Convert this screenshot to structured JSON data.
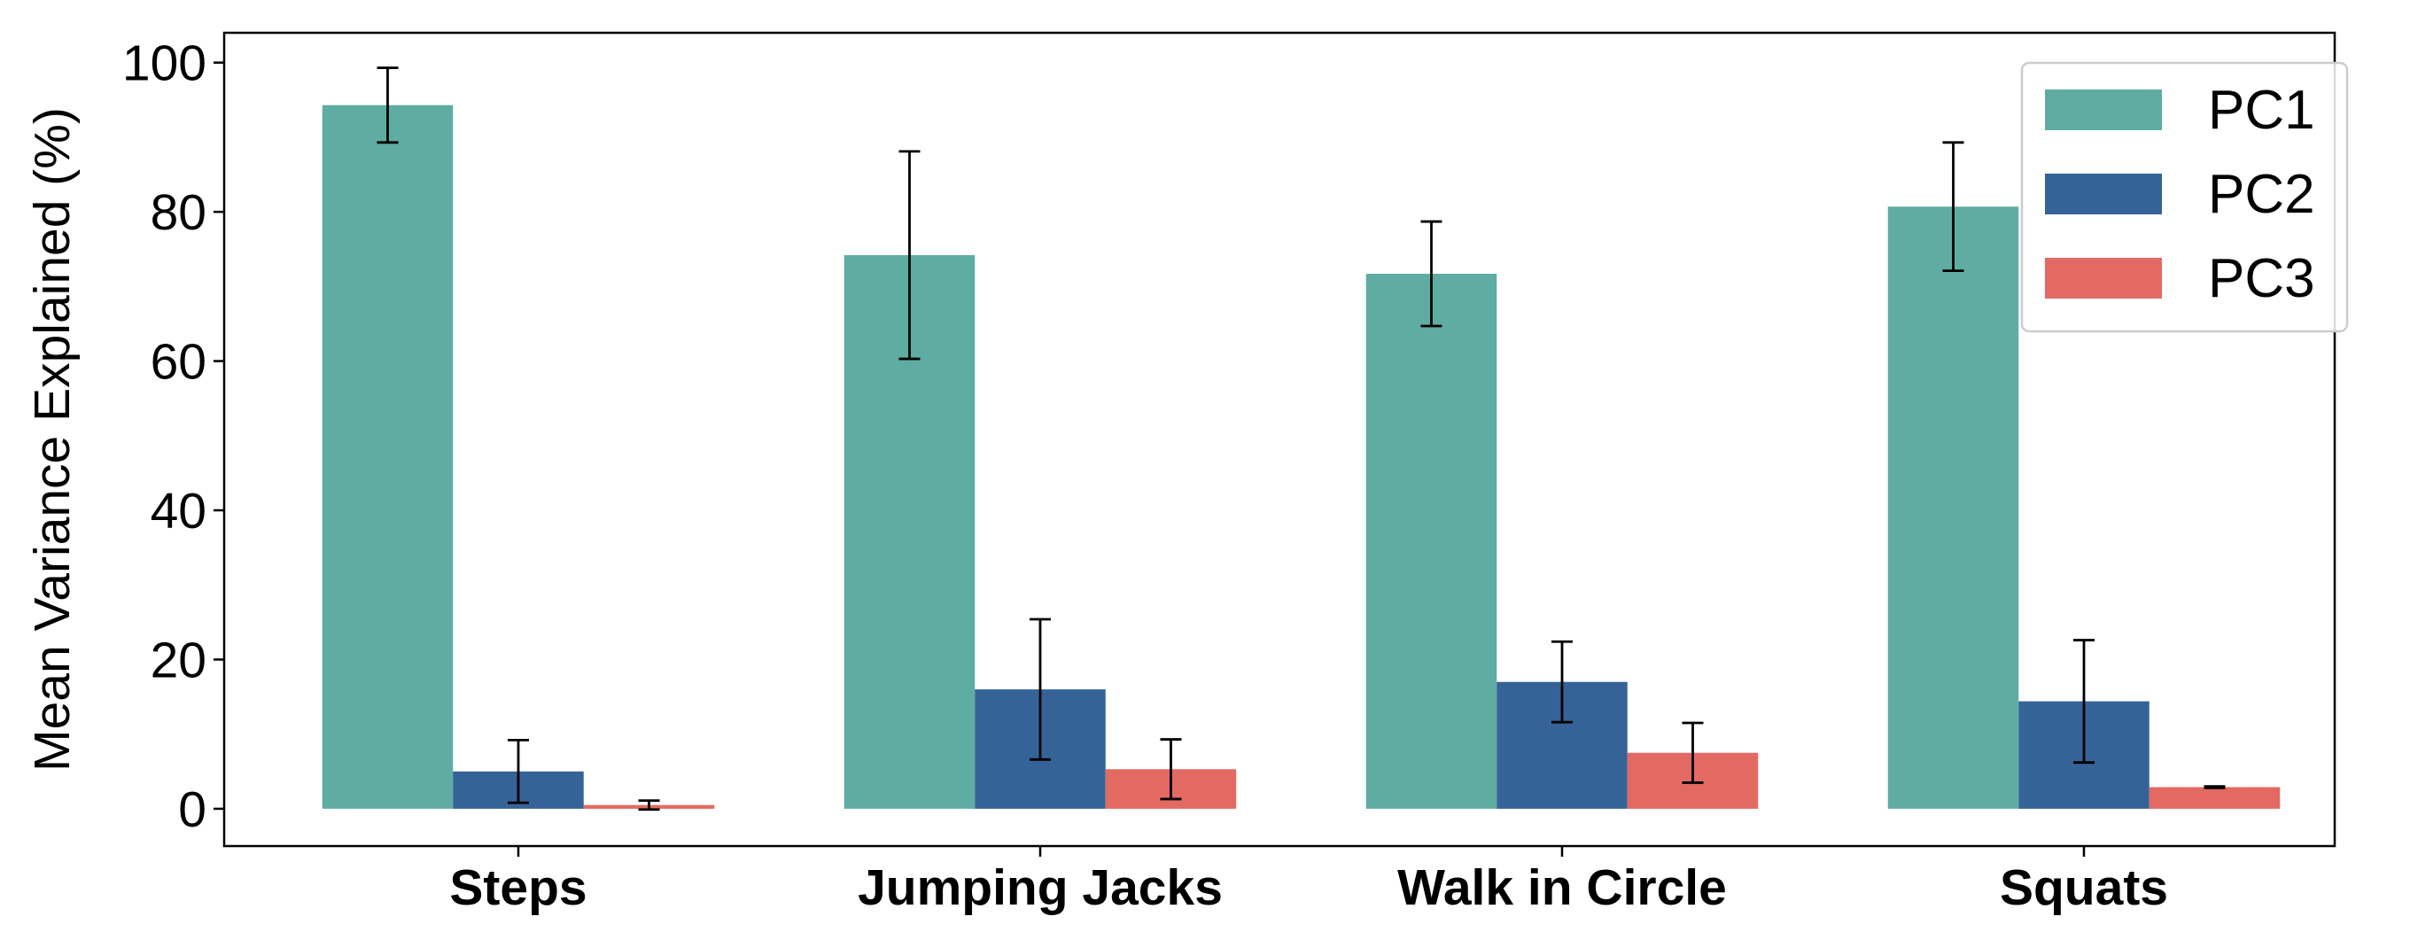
{
  "chart_data": {
    "type": "bar",
    "title": "",
    "xlabel": "",
    "ylabel": "Mean Variance Explained (%)",
    "categories": [
      "Steps",
      "Jumping Jacks",
      "Walk in Circle",
      "Squats"
    ],
    "series": [
      {
        "name": "PC1",
        "color": "#5fac a3",
        "values": [
          94.3,
          74.2,
          71.7,
          80.7
        ],
        "errors": [
          5.0,
          13.9,
          7.0,
          8.6
        ]
      },
      {
        "name": "PC2",
        "color": "#366397",
        "values": [
          5.0,
          16.0,
          17.0,
          14.4
        ],
        "errors": [
          4.2,
          9.4,
          5.4,
          8.2
        ]
      },
      {
        "name": "PC3",
        "color": "#e36a62",
        "values": [
          0.5,
          5.3,
          7.5,
          2.9
        ],
        "errors": [
          0.6,
          4.0,
          4.0,
          0.1
        ]
      }
    ],
    "ylim": [
      -5,
      104
    ],
    "yticks": [
      0,
      20,
      40,
      60,
      80,
      100
    ],
    "grid": false,
    "legend_position": "top-right"
  }
}
